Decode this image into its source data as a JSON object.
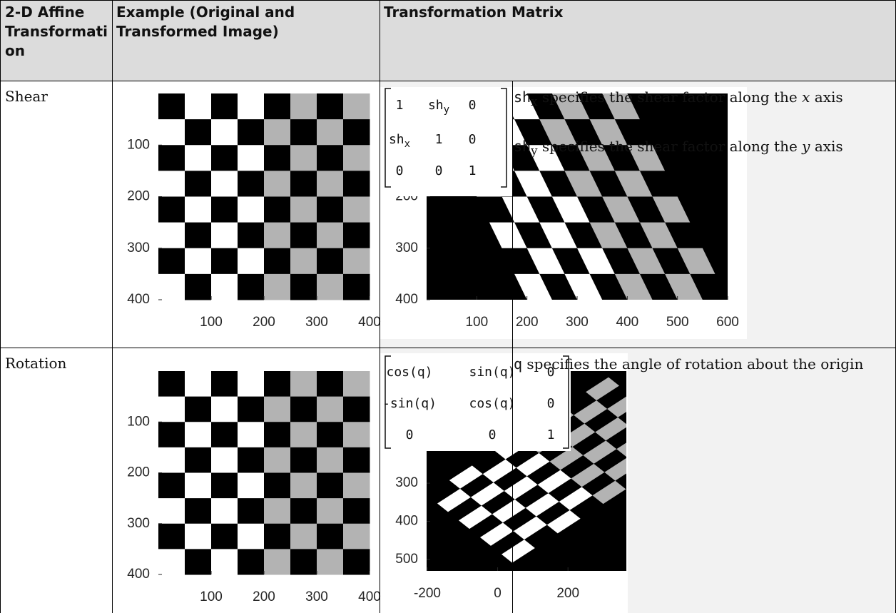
{
  "table": {
    "headers": [
      "2-D Affine Transformation",
      "Example (Original and Transformed Image)",
      "Transformation Matrix"
    ],
    "rows": [
      {
        "name": "Shear",
        "original": {
          "xlim": [
            0,
            400
          ],
          "ylim": [
            0,
            400
          ],
          "xticks": [
            100,
            200,
            300,
            400
          ],
          "yticks": [
            100,
            200,
            300,
            400
          ]
        },
        "transformed": {
          "xlim": [
            0,
            600
          ],
          "ylim": [
            0,
            400
          ],
          "xticks": [
            100,
            200,
            300,
            400,
            500,
            600
          ],
          "yticks": [
            200,
            300,
            400
          ]
        },
        "matrix": [
          [
            {
              "text": "1"
            },
            {
              "text": "sh",
              "sub": "y"
            },
            {
              "text": "0"
            }
          ],
          [
            {
              "text": "sh",
              "sub": "x"
            },
            {
              "text": "1"
            },
            {
              "text": "0"
            }
          ],
          [
            {
              "text": "0"
            },
            {
              "text": "0"
            },
            {
              "text": "1"
            }
          ]
        ],
        "notes": [
          {
            "symbol": "sh",
            "sub": "x",
            "text": "specifies the shear factor along the",
            "axis": "x",
            "end": "axis"
          },
          {
            "symbol": "sh",
            "sub": "y",
            "text": "specifies the shear factor along the",
            "axis": "y",
            "end": "axis"
          }
        ]
      },
      {
        "name": "Rotation",
        "original": {
          "xlim": [
            0,
            400
          ],
          "ylim": [
            0,
            400
          ],
          "xticks": [
            100,
            200,
            300,
            400
          ],
          "yticks": [
            100,
            200,
            300,
            400
          ]
        },
        "transformed": {
          "xlim": [
            -202,
            366
          ],
          "ylim": [
            6,
            530
          ],
          "xticks": [
            -200,
            0,
            200
          ],
          "yticks": [
            300,
            400,
            500
          ]
        },
        "matrix": [
          [
            {
              "text": "cos(q)"
            },
            {
              "text": "sin(q)"
            },
            {
              "text": "0"
            }
          ],
          [
            {
              "text": "-sin(q)"
            },
            {
              "text": "cos(q)"
            },
            {
              "text": "0"
            }
          ],
          [
            {
              "text": "0"
            },
            {
              "text": "0"
            },
            {
              "text": "1"
            }
          ]
        ],
        "notes": [
          {
            "symbol": "q",
            "text": "specifies the angle of rotation about the origin"
          }
        ]
      }
    ]
  }
}
